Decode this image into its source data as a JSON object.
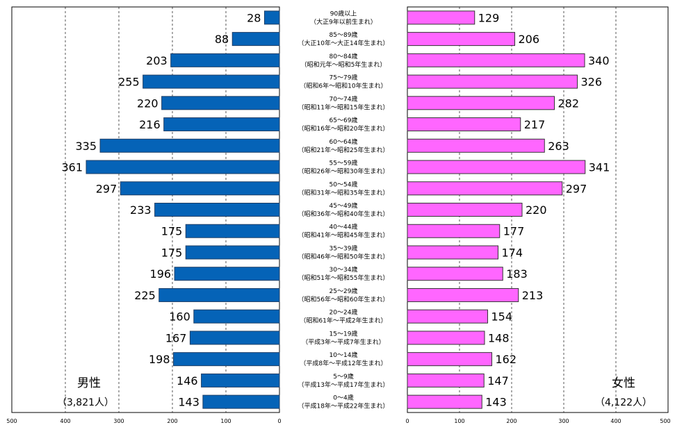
{
  "chart_data": {
    "type": "bar",
    "orientation": "horizontal",
    "layout": "population-pyramid",
    "xlim": [
      0,
      500
    ],
    "x_ticks": [
      0,
      100,
      200,
      300,
      400,
      500
    ],
    "grid": "vertical dashed",
    "categories": [
      {
        "age": "90歳以上",
        "era": "（大正9年以前生まれ）"
      },
      {
        "age": "85～89歳",
        "era": "（大正10年～大正14年生まれ）"
      },
      {
        "age": "80～84歳",
        "era": "（昭和元年～昭和5年生まれ）"
      },
      {
        "age": "75～79歳",
        "era": "（昭和6年～昭和10年生まれ）"
      },
      {
        "age": "70～74歳",
        "era": "（昭和11年～昭和15年生まれ）"
      },
      {
        "age": "65～69歳",
        "era": "（昭和16年～昭和20年生まれ）"
      },
      {
        "age": "60～64歳",
        "era": "（昭和21年～昭和25年生まれ）"
      },
      {
        "age": "55～59歳",
        "era": "（昭和26年～昭和30年生まれ）"
      },
      {
        "age": "50～54歳",
        "era": "（昭和31年～昭和35年生まれ）"
      },
      {
        "age": "45～49歳",
        "era": "（昭和36年～昭和40年生まれ）"
      },
      {
        "age": "40～44歳",
        "era": "（昭和41年～昭和45年生まれ）"
      },
      {
        "age": "35～39歳",
        "era": "（昭和46年～昭和50年生まれ）"
      },
      {
        "age": "30～34歳",
        "era": "（昭和51年～昭和55年生まれ）"
      },
      {
        "age": "25～29歳",
        "era": "（昭和56年～昭和60年生まれ）"
      },
      {
        "age": "20～24歳",
        "era": "（昭和61年～平成2年生まれ）"
      },
      {
        "age": "15～19歳",
        "era": "（平成3年～平成7年生まれ）"
      },
      {
        "age": "10～14歳",
        "era": "（平成8年～平成12年生まれ）"
      },
      {
        "age": "5～9歳",
        "era": "（平成13年～平成17年生まれ）"
      },
      {
        "age": "0～4歳",
        "era": "（平成18年～平成22年生まれ）"
      }
    ],
    "series": [
      {
        "name": "男性",
        "total_label": "（3,821人）",
        "color": "#0563b7",
        "values": [
          28,
          88,
          203,
          255,
          220,
          216,
          335,
          361,
          297,
          233,
          175,
          175,
          196,
          225,
          160,
          167,
          198,
          146,
          143
        ]
      },
      {
        "name": "女性",
        "total_label": "（4,122人）",
        "color": "#ff66ff",
        "values": [
          129,
          206,
          340,
          326,
          282,
          217,
          263,
          341,
          297,
          220,
          177,
          174,
          183,
          213,
          154,
          148,
          162,
          147,
          143
        ]
      }
    ]
  }
}
